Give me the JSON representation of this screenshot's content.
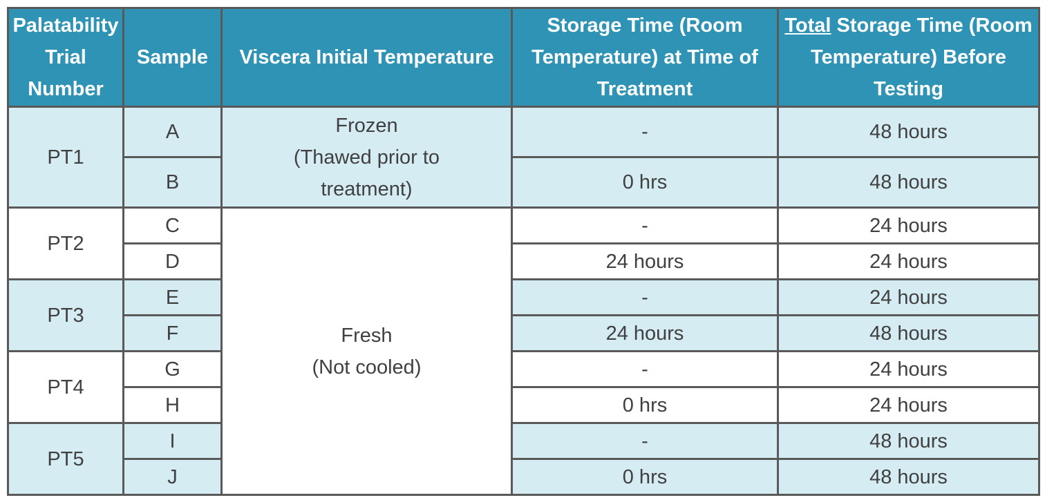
{
  "headers": {
    "trial": "Palatability Trial Number",
    "sample": "Sample",
    "viscera": "Viscera Initial Temperature",
    "storage_treat": "Storage Time (Room Temperature)  at Time of Treatment",
    "total_underlined": "Total",
    "total_rest": " Storage Time (Room Temperature) Before Testing"
  },
  "viscera_groups": [
    {
      "line1": "Frozen",
      "line2": "(Thawed prior to treatment)"
    },
    {
      "line1": "Fresh",
      "line2": "(Not cooled)"
    }
  ],
  "trials": [
    "PT1",
    "PT2",
    "PT3",
    "PT4",
    "PT5"
  ],
  "rows": [
    {
      "sample": "A",
      "storage": "-",
      "total": "48 hours"
    },
    {
      "sample": "B",
      "storage": "0 hrs",
      "total": "48 hours"
    },
    {
      "sample": "C",
      "storage": "-",
      "total": "24 hours"
    },
    {
      "sample": "D",
      "storage": "24 hours",
      "total": "24 hours"
    },
    {
      "sample": "E",
      "storage": "-",
      "total": "24 hours"
    },
    {
      "sample": "F",
      "storage": "24 hours",
      "total": "48 hours"
    },
    {
      "sample": "G",
      "storage": "-",
      "total": "24 hours"
    },
    {
      "sample": "H",
      "storage": "0 hrs",
      "total": "24 hours"
    },
    {
      "sample": "I",
      "storage": "-",
      "total": "48 hours"
    },
    {
      "sample": "J",
      "storage": "0 hrs",
      "total": "48 hours"
    }
  ],
  "colors": {
    "header_bg": "#2e93b4",
    "alt_row_bg": "#d6ecf3",
    "border": "#595959"
  }
}
